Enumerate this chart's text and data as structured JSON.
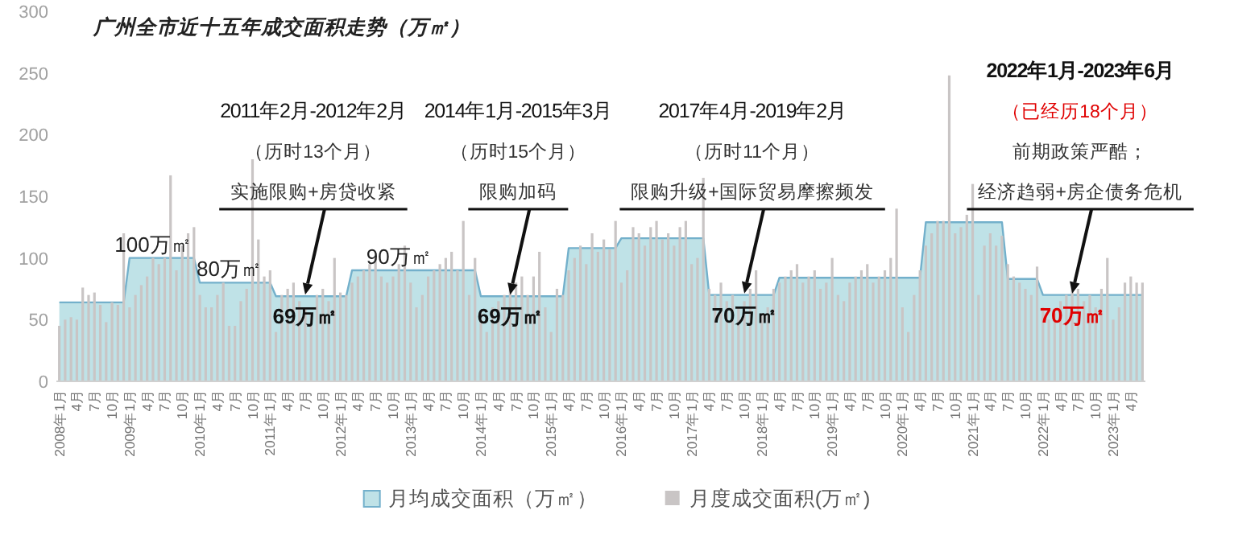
{
  "chart_data": {
    "type": "bar",
    "title": "广州全市近十五年成交面积走势（万㎡）",
    "x": [
      "2008-01",
      "2008-02",
      "2008-03",
      "2008-04",
      "2008-05",
      "2008-06",
      "2008-07",
      "2008-08",
      "2008-09",
      "2008-10",
      "2008-11",
      "2008-12",
      "2009-01",
      "2009-02",
      "2009-03",
      "2009-04",
      "2009-05",
      "2009-06",
      "2009-07",
      "2009-08",
      "2009-09",
      "2009-10",
      "2009-11",
      "2009-12",
      "2010-01",
      "2010-02",
      "2010-03",
      "2010-04",
      "2010-05",
      "2010-06",
      "2010-07",
      "2010-08",
      "2010-09",
      "2010-10",
      "2010-11",
      "2010-12",
      "2011-01",
      "2011-02",
      "2011-03",
      "2011-04",
      "2011-05",
      "2011-06",
      "2011-07",
      "2011-08",
      "2011-09",
      "2011-10",
      "2011-11",
      "2011-12",
      "2012-01",
      "2012-02",
      "2012-03",
      "2012-04",
      "2012-05",
      "2012-06",
      "2012-07",
      "2012-08",
      "2012-09",
      "2012-10",
      "2012-11",
      "2012-12",
      "2013-01",
      "2013-02",
      "2013-03",
      "2013-04",
      "2013-05",
      "2013-06",
      "2013-07",
      "2013-08",
      "2013-09",
      "2013-10",
      "2013-11",
      "2013-12",
      "2014-01",
      "2014-02",
      "2014-03",
      "2014-04",
      "2014-05",
      "2014-06",
      "2014-07",
      "2014-08",
      "2014-09",
      "2014-10",
      "2014-11",
      "2014-12",
      "2015-01",
      "2015-02",
      "2015-03",
      "2015-04",
      "2015-05",
      "2015-06",
      "2015-07",
      "2015-08",
      "2015-09",
      "2015-10",
      "2015-11",
      "2015-12",
      "2016-01",
      "2016-02",
      "2016-03",
      "2016-04",
      "2016-05",
      "2016-06",
      "2016-07",
      "2016-08",
      "2016-09",
      "2016-10",
      "2016-11",
      "2016-12",
      "2017-01",
      "2017-02",
      "2017-03",
      "2017-04",
      "2017-05",
      "2017-06",
      "2017-07",
      "2017-08",
      "2017-09",
      "2017-10",
      "2017-11",
      "2017-12",
      "2018-01",
      "2018-02",
      "2018-03",
      "2018-04",
      "2018-05",
      "2018-06",
      "2018-07",
      "2018-08",
      "2018-09",
      "2018-10",
      "2018-11",
      "2018-12",
      "2019-01",
      "2019-02",
      "2019-03",
      "2019-04",
      "2019-05",
      "2019-06",
      "2019-07",
      "2019-08",
      "2019-09",
      "2019-10",
      "2019-11",
      "2019-12",
      "2020-01",
      "2020-02",
      "2020-03",
      "2020-04",
      "2020-05",
      "2020-06",
      "2020-07",
      "2020-08",
      "2020-09",
      "2020-10",
      "2020-11",
      "2020-12",
      "2021-01",
      "2021-02",
      "2021-03",
      "2021-04",
      "2021-05",
      "2021-06",
      "2021-07",
      "2021-08",
      "2021-09",
      "2021-10",
      "2021-11",
      "2021-12",
      "2022-01",
      "2022-02",
      "2022-03",
      "2022-04",
      "2022-05",
      "2022-06",
      "2022-07",
      "2022-08",
      "2022-09",
      "2022-10",
      "2022-11",
      "2022-12",
      "2023-01",
      "2023-02",
      "2023-03",
      "2023-04",
      "2023-05",
      "2023-06"
    ],
    "xlim": [
      "2007-12-16",
      "2023-06-16"
    ],
    "xticks": [
      {
        "value": "2008-01",
        "label": "2008年1月"
      },
      {
        "value": "2008-04",
        "label": "4月"
      },
      {
        "value": "2008-07",
        "label": "7月"
      },
      {
        "value": "2008-10",
        "label": "10月"
      },
      {
        "value": "2009-01",
        "label": "2009年1月"
      },
      {
        "value": "2009-04",
        "label": "4月"
      },
      {
        "value": "2009-07",
        "label": "7月"
      },
      {
        "value": "2009-10",
        "label": "10月"
      },
      {
        "value": "2010-01",
        "label": "2010年1月"
      },
      {
        "value": "2010-04",
        "label": "4月"
      },
      {
        "value": "2010-07",
        "label": "7月"
      },
      {
        "value": "2010-10",
        "label": "10月"
      },
      {
        "value": "2011-01",
        "label": "2011年1月"
      },
      {
        "value": "2011-04",
        "label": "4月"
      },
      {
        "value": "2011-07",
        "label": "7月"
      },
      {
        "value": "2011-10",
        "label": "10月"
      },
      {
        "value": "2012-01",
        "label": "2012年1月"
      },
      {
        "value": "2012-04",
        "label": "4月"
      },
      {
        "value": "2012-07",
        "label": "7月"
      },
      {
        "value": "2012-10",
        "label": "10月"
      },
      {
        "value": "2013-01",
        "label": "2013年1月"
      },
      {
        "value": "2013-04",
        "label": "4月"
      },
      {
        "value": "2013-07",
        "label": "7月"
      },
      {
        "value": "2013-10",
        "label": "10月"
      },
      {
        "value": "2014-01",
        "label": "2014年1月"
      },
      {
        "value": "2014-04",
        "label": "4月"
      },
      {
        "value": "2014-07",
        "label": "7月"
      },
      {
        "value": "2014-10",
        "label": "10月"
      },
      {
        "value": "2015-01",
        "label": "2015年1月"
      },
      {
        "value": "2015-04",
        "label": "4月"
      },
      {
        "value": "2015-07",
        "label": "7月"
      },
      {
        "value": "2015-10",
        "label": "10月"
      },
      {
        "value": "2016-01",
        "label": "2016年1月"
      },
      {
        "value": "2016-04",
        "label": "4月"
      },
      {
        "value": "2016-07",
        "label": "7月"
      },
      {
        "value": "2016-10",
        "label": "10月"
      },
      {
        "value": "2017-01",
        "label": "2017年1月"
      },
      {
        "value": "2017-04",
        "label": "4月"
      },
      {
        "value": "2017-07",
        "label": "7月"
      },
      {
        "value": "2017-10",
        "label": "10月"
      },
      {
        "value": "2018-01",
        "label": "2018年1月"
      },
      {
        "value": "2018-04",
        "label": "4月"
      },
      {
        "value": "2018-07",
        "label": "7月"
      },
      {
        "value": "2018-10",
        "label": "10月"
      },
      {
        "value": "2019-01",
        "label": "2019年1月"
      },
      {
        "value": "2019-04",
        "label": "4月"
      },
      {
        "value": "2019-07",
        "label": "7月"
      },
      {
        "value": "2019-10",
        "label": "10月"
      },
      {
        "value": "2020-01",
        "label": "2020年1月"
      },
      {
        "value": "2020-04",
        "label": "4月"
      },
      {
        "value": "2020-07",
        "label": "7月"
      },
      {
        "value": "2020-10",
        "label": "10月"
      },
      {
        "value": "2021-01",
        "label": "2021年1月"
      },
      {
        "value": "2021-04",
        "label": "4月"
      },
      {
        "value": "2021-07",
        "label": "7月"
      },
      {
        "value": "2021-10",
        "label": "10月"
      },
      {
        "value": "2022-01",
        "label": "2022年1月"
      },
      {
        "value": "2022-04",
        "label": "4月"
      },
      {
        "value": "2022-07",
        "label": "7月"
      },
      {
        "value": "2022-10",
        "label": "10月"
      },
      {
        "value": "2023-01",
        "label": "2023年1月"
      },
      {
        "value": "2023-04",
        "label": "4月"
      }
    ],
    "ylim": [
      0,
      300
    ],
    "yticks": [
      0,
      50,
      100,
      150,
      200,
      250,
      300
    ],
    "legend": "bottom",
    "series": [
      {
        "name": "月均成交面积（万㎡）",
        "type": "area",
        "color": "#bfe2e7",
        "values": [
          64,
          64,
          64,
          64,
          64,
          64,
          64,
          64,
          64,
          64,
          64,
          64,
          100,
          100,
          100,
          100,
          100,
          100,
          100,
          100,
          100,
          100,
          100,
          100,
          80,
          80,
          80,
          80,
          80,
          80,
          80,
          80,
          80,
          80,
          80,
          80,
          80,
          69,
          69,
          69,
          69,
          69,
          69,
          69,
          69,
          69,
          69,
          69,
          69,
          69,
          90,
          90,
          90,
          90,
          90,
          90,
          90,
          90,
          90,
          90,
          90,
          90,
          90,
          90,
          90,
          90,
          90,
          90,
          90,
          90,
          90,
          90,
          69,
          69,
          69,
          69,
          69,
          69,
          69,
          69,
          69,
          69,
          69,
          69,
          69,
          69,
          69,
          108,
          108,
          108,
          108,
          108,
          108,
          108,
          108,
          108,
          116,
          116,
          116,
          116,
          116,
          116,
          116,
          116,
          116,
          116,
          116,
          116,
          116,
          116,
          116,
          70,
          70,
          70,
          70,
          70,
          70,
          70,
          70,
          70,
          70,
          70,
          70,
          84,
          84,
          84,
          84,
          84,
          84,
          84,
          84,
          84,
          84,
          84,
          84,
          84,
          84,
          84,
          84,
          84,
          84,
          84,
          84,
          84,
          84,
          84,
          84,
          84,
          129,
          129,
          129,
          129,
          129,
          129,
          129,
          129,
          129,
          129,
          129,
          129,
          129,
          129,
          83,
          83,
          83,
          83,
          83,
          83,
          70,
          70,
          70,
          70,
          70,
          70,
          70,
          70,
          70,
          70,
          70,
          70,
          70,
          70,
          70,
          70,
          70,
          70
        ]
      },
      {
        "name": "月度成交面积(万㎡)",
        "type": "bar",
        "color": "#c9c5c5",
        "values": [
          45,
          50,
          52,
          50,
          76,
          70,
          72,
          62,
          48,
          64,
          62,
          120,
          60,
          70,
          78,
          85,
          100,
          95,
          100,
          167,
          90,
          110,
          120,
          125,
          70,
          60,
          60,
          70,
          80,
          45,
          45,
          65,
          75,
          180,
          115,
          85,
          90,
          40,
          70,
          75,
          80,
          65,
          60,
          55,
          70,
          75,
          65,
          100,
          72,
          70,
          80,
          85,
          90,
          95,
          100,
          85,
          80,
          85,
          95,
          110,
          80,
          60,
          70,
          85,
          90,
          95,
          100,
          105,
          90,
          130,
          70,
          100,
          55,
          40,
          60,
          65,
          70,
          75,
          80,
          85,
          70,
          85,
          105,
          60,
          40,
          75,
          70,
          90,
          100,
          110,
          95,
          120,
          105,
          115,
          107,
          130,
          80,
          90,
          125,
          120,
          110,
          125,
          130,
          115,
          120,
          110,
          125,
          130,
          95,
          100,
          165,
          75,
          70,
          80,
          65,
          70,
          60,
          65,
          75,
          90,
          55,
          60,
          75,
          80,
          85,
          90,
          95,
          80,
          85,
          90,
          75,
          80,
          100,
          70,
          65,
          80,
          85,
          90,
          95,
          80,
          85,
          90,
          100,
          140,
          60,
          40,
          70,
          90,
          110,
          120,
          130,
          130,
          248,
          120,
          125,
          135,
          160,
          70,
          110,
          120,
          110,
          118,
          95,
          85,
          80,
          75,
          70,
          93,
          60,
          50,
          55,
          65,
          70,
          80,
          75,
          65,
          70,
          60,
          75,
          100,
          50,
          60,
          80,
          85,
          80,
          80
        ]
      }
    ],
    "annotations": [
      {
        "text": "100万㎡",
        "x": "2009-05",
        "y": 100
      },
      {
        "text": "80万㎡",
        "x": "2010-06",
        "y": 80
      },
      "2011年2月-2012年2月",
      "（历时13个月）",
      {
        "text": "实施限购+房贷收紧",
        "x": "2011-07",
        "y": 69
      },
      {
        "text": "69万㎡",
        "x": "2011-07",
        "y": 69
      },
      {
        "text": "90万㎡",
        "x": "2012-11",
        "y": 90
      },
      "2014年1月-2015年3月",
      "（历时15个月）",
      {
        "text": "限购加码",
        "x": "2014-06",
        "y": 69
      },
      {
        "text": "69万㎡",
        "x": "2014-06",
        "y": 69
      },
      "2017年4月-2019年2月",
      "（历时11个月）",
      {
        "text": "限购升级+国际贸易摩擦频发",
        "x": "2017-10",
        "y": 70
      },
      {
        "text": "70万㎡",
        "x": "2017-10",
        "y": 70
      },
      "2022年1月-2023年6月",
      "（已经历18个月）",
      "前期政策严酷；",
      {
        "text": "经济趋弱+房企债务危机",
        "x": "2022-06",
        "y": 70
      },
      {
        "text": "70万㎡",
        "x": "2022-06",
        "y": 70
      }
    ]
  }
}
